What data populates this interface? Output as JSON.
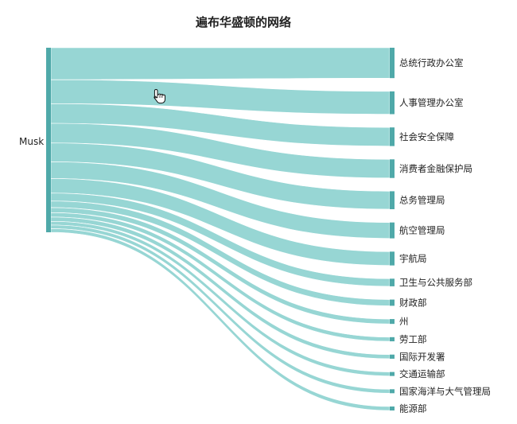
{
  "chart_data": {
    "type": "sankey",
    "title": "遍布华盛顿的网络",
    "source": "Musk",
    "targets": [
      {
        "name": "总统行政办公室",
        "value": 44
      },
      {
        "name": "人事管理办公室",
        "value": 33
      },
      {
        "name": "社会安全保障",
        "value": 27
      },
      {
        "name": "消费者金融保护局",
        "value": 27
      },
      {
        "name": "总务管理局",
        "value": 26
      },
      {
        "name": "航空管理局",
        "value": 23
      },
      {
        "name": "宇航局",
        "value": 20
      },
      {
        "name": "卫生与公共服务部",
        "value": 11
      },
      {
        "name": "财政部",
        "value": 9
      },
      {
        "name": "州",
        "value": 7
      },
      {
        "name": "劳工部",
        "value": 6
      },
      {
        "name": "国际开发署",
        "value": 6
      },
      {
        "name": "交通运输部",
        "value": 5
      },
      {
        "name": "国家海洋与大气管理局",
        "value": 5
      },
      {
        "name": "能源部",
        "value": 5
      }
    ],
    "colors": {
      "link": "#8ed3d0",
      "node": "#4fa9a9",
      "text": "#222222"
    }
  },
  "cursor": {
    "icon": "hand-pointer-icon"
  }
}
